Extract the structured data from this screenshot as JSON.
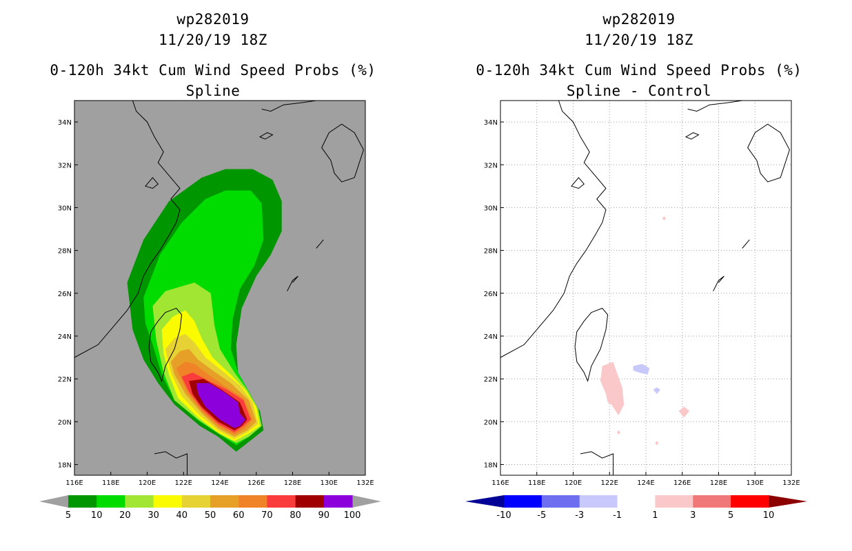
{
  "chart_data": [
    {
      "type": "filled-contour-map",
      "storm_id": "wp282019",
      "datetime": "11/20/19 18Z",
      "title": "0-120h 34kt Cum Wind Speed Probs (%)",
      "subtitle": "Spline",
      "xlabel": "",
      "ylabel": "",
      "xlim": [
        116,
        132
      ],
      "ylim": [
        17.5,
        35
      ],
      "grid": true,
      "x_tick_values": [
        116,
        118,
        120,
        122,
        124,
        126,
        128,
        130,
        132
      ],
      "x_tick_labels": [
        "116E",
        "118E",
        "120E",
        "122E",
        "124E",
        "126E",
        "128E",
        "130E",
        "132E"
      ],
      "y_tick_values": [
        18,
        20,
        22,
        24,
        26,
        28,
        30,
        32,
        34
      ],
      "y_tick_labels": [
        "18N",
        "20N",
        "22N",
        "24N",
        "26N",
        "28N",
        "30N",
        "32N",
        "34N"
      ],
      "colorbar": {
        "labels": [
          "5",
          "10",
          "20",
          "30",
          "40",
          "50",
          "60",
          "70",
          "80",
          "90",
          "100"
        ],
        "colors": [
          "#009600",
          "#00dc00",
          "#a0e632",
          "#fafa00",
          "#e6d232",
          "#e6a028",
          "#f08228",
          "#fa3c3c",
          "#a00000",
          "#8c00dc"
        ],
        "under_color": "#a0a0a0",
        "over_color": "#a0a0a0"
      },
      "contour_levels": [
        {
          "level": 5,
          "points": [
            [
              118.9,
              26.5
            ],
            [
              119.8,
              28.5
            ],
            [
              121.2,
              30.3
            ],
            [
              123.0,
              31.4
            ],
            [
              124.3,
              31.8
            ],
            [
              125.8,
              31.8
            ],
            [
              126.9,
              31.3
            ],
            [
              127.4,
              30.3
            ],
            [
              127.4,
              28.9
            ],
            [
              126.8,
              27.8
            ],
            [
              126.0,
              26.8
            ],
            [
              125.2,
              25.3
            ],
            [
              124.9,
              23.6
            ],
            [
              125.0,
              22.2
            ],
            [
              125.6,
              21.3
            ],
            [
              126.2,
              20.5
            ],
            [
              126.4,
              19.6
            ],
            [
              125.5,
              19.0
            ],
            [
              124.9,
              18.6
            ],
            [
              123.9,
              19.3
            ],
            [
              122.9,
              19.8
            ],
            [
              121.5,
              20.8
            ],
            [
              120.6,
              21.8
            ],
            [
              119.8,
              22.9
            ],
            [
              119.2,
              24.3
            ]
          ]
        },
        {
          "level": 10,
          "points": [
            [
              119.8,
              25.8
            ],
            [
              120.7,
              27.8
            ],
            [
              121.9,
              29.3
            ],
            [
              123.2,
              30.4
            ],
            [
              124.3,
              30.8
            ],
            [
              125.7,
              30.8
            ],
            [
              126.3,
              30.2
            ],
            [
              126.4,
              28.5
            ],
            [
              125.9,
              27.3
            ],
            [
              125.1,
              26.2
            ],
            [
              124.7,
              24.8
            ],
            [
              124.6,
              23.4
            ],
            [
              125.0,
              22.3
            ],
            [
              125.6,
              21.4
            ],
            [
              126.1,
              20.6
            ],
            [
              126.3,
              19.8
            ],
            [
              125.6,
              19.3
            ],
            [
              124.9,
              18.9
            ],
            [
              124.0,
              19.4
            ],
            [
              122.9,
              20.0
            ],
            [
              121.5,
              21.0
            ],
            [
              120.8,
              22.2
            ],
            [
              120.3,
              23.6
            ],
            [
              119.9,
              24.6
            ]
          ]
        },
        {
          "level": 20,
          "points": [
            [
              120.3,
              25.4
            ],
            [
              121.0,
              26.1
            ],
            [
              122.6,
              26.5
            ],
            [
              123.5,
              26.0
            ],
            [
              123.7,
              24.5
            ],
            [
              124.0,
              23.4
            ],
            [
              124.8,
              22.3
            ],
            [
              125.5,
              21.5
            ],
            [
              126.1,
              20.6
            ],
            [
              126.3,
              19.8
            ],
            [
              125.6,
              19.3
            ],
            [
              124.9,
              19.0
            ],
            [
              124.0,
              19.4
            ],
            [
              122.8,
              20.1
            ],
            [
              121.5,
              21.0
            ],
            [
              120.9,
              22.3
            ],
            [
              120.5,
              23.8
            ]
          ]
        },
        {
          "level": 30,
          "points": [
            [
              120.8,
              24.3
            ],
            [
              121.4,
              24.9
            ],
            [
              122.1,
              25.2
            ],
            [
              122.6,
              24.7
            ],
            [
              123.0,
              23.9
            ],
            [
              123.6,
              23.0
            ],
            [
              124.6,
              22.2
            ],
            [
              125.4,
              21.5
            ],
            [
              126.0,
              20.7
            ],
            [
              126.2,
              19.8
            ],
            [
              125.5,
              19.4
            ],
            [
              124.8,
              19.1
            ],
            [
              123.9,
              19.5
            ],
            [
              122.8,
              20.2
            ],
            [
              121.7,
              21.1
            ],
            [
              121.2,
              22.2
            ],
            [
              120.9,
              23.2
            ]
          ]
        },
        {
          "level": 40,
          "points": [
            [
              121.0,
              23.4
            ],
            [
              121.5,
              23.9
            ],
            [
              122.1,
              24.1
            ],
            [
              122.6,
              23.7
            ],
            [
              123.2,
              23.0
            ],
            [
              124.1,
              22.4
            ],
            [
              125.1,
              21.7
            ],
            [
              125.8,
              20.9
            ],
            [
              126.1,
              19.9
            ],
            [
              125.5,
              19.5
            ],
            [
              124.8,
              19.2
            ],
            [
              123.9,
              19.6
            ],
            [
              122.9,
              20.3
            ],
            [
              121.9,
              21.2
            ],
            [
              121.3,
              22.3
            ]
          ]
        },
        {
          "level": 50,
          "points": [
            [
              121.3,
              22.8
            ],
            [
              121.8,
              23.3
            ],
            [
              122.3,
              23.4
            ],
            [
              122.8,
              22.9
            ],
            [
              123.6,
              22.4
            ],
            [
              124.6,
              21.8
            ],
            [
              125.6,
              21.0
            ],
            [
              126.0,
              20.0
            ],
            [
              125.5,
              19.6
            ],
            [
              124.8,
              19.3
            ],
            [
              123.9,
              19.7
            ],
            [
              123.0,
              20.4
            ],
            [
              122.1,
              21.3
            ],
            [
              121.5,
              22.2
            ]
          ]
        },
        {
          "level": 60,
          "points": [
            [
              121.6,
              22.5
            ],
            [
              122.1,
              22.8
            ],
            [
              122.6,
              22.7
            ],
            [
              123.2,
              22.3
            ],
            [
              124.2,
              21.7
            ],
            [
              125.3,
              21.1
            ],
            [
              125.8,
              20.1
            ],
            [
              125.4,
              19.7
            ],
            [
              124.8,
              19.4
            ],
            [
              123.9,
              19.8
            ],
            [
              123.0,
              20.5
            ],
            [
              122.2,
              21.4
            ]
          ]
        },
        {
          "level": 70,
          "points": [
            [
              121.9,
              22.1
            ],
            [
              122.5,
              22.3
            ],
            [
              123.4,
              21.9
            ],
            [
              124.4,
              21.5
            ],
            [
              125.3,
              21.0
            ],
            [
              125.7,
              20.1
            ],
            [
              125.3,
              19.8
            ],
            [
              124.8,
              19.5
            ],
            [
              123.9,
              19.9
            ],
            [
              123.0,
              20.6
            ],
            [
              122.3,
              21.4
            ]
          ]
        },
        {
          "level": 80,
          "points": [
            [
              122.3,
              21.9
            ],
            [
              123.1,
              22.0
            ],
            [
              124.1,
              21.5
            ],
            [
              125.1,
              20.9
            ],
            [
              125.5,
              20.1
            ],
            [
              125.2,
              19.8
            ],
            [
              124.8,
              19.6
            ],
            [
              123.9,
              20.0
            ],
            [
              123.0,
              20.7
            ],
            [
              122.5,
              21.3
            ]
          ]
        },
        {
          "level": 90,
          "points": [
            [
              122.7,
              21.8
            ],
            [
              123.4,
              21.8
            ],
            [
              124.2,
              21.4
            ],
            [
              125.0,
              20.9
            ],
            [
              125.1,
              20.4
            ],
            [
              125.4,
              20.1
            ],
            [
              125.1,
              19.8
            ],
            [
              124.8,
              19.7
            ],
            [
              124.0,
              20.1
            ],
            [
              123.2,
              20.7
            ],
            [
              122.8,
              21.3
            ]
          ]
        }
      ]
    },
    {
      "type": "filled-contour-map",
      "storm_id": "wp282019",
      "datetime": "11/20/19 18Z",
      "title": "0-120h 34kt Cum Wind Speed Probs (%)",
      "subtitle": "Spline - Control",
      "xlabel": "",
      "ylabel": "",
      "xlim": [
        116,
        132
      ],
      "ylim": [
        17.5,
        35
      ],
      "grid": true,
      "x_tick_values": [
        116,
        118,
        120,
        122,
        124,
        126,
        128,
        130,
        132
      ],
      "x_tick_labels": [
        "116E",
        "118E",
        "120E",
        "122E",
        "124E",
        "126E",
        "128E",
        "130E",
        "132E"
      ],
      "y_tick_values": [
        18,
        20,
        22,
        24,
        26,
        28,
        30,
        32,
        34
      ],
      "y_tick_labels": [
        "18N",
        "20N",
        "22N",
        "24N",
        "26N",
        "28N",
        "30N",
        "32N",
        "34N"
      ],
      "colorbar": {
        "labels": [
          "-10",
          "-5",
          "-3",
          "-1",
          "1",
          "3",
          "5",
          "10"
        ],
        "colors": [
          "#0000ff",
          "#6e6ef0",
          "#c8c8fa",
          "#ffffff",
          "#fac8c8",
          "#f07878",
          "#ff0000"
        ],
        "under_color": "#000096",
        "over_color": "#8c0000"
      },
      "anomalies": [
        {
          "value_range": "1 to 3",
          "color": "#fac8c8",
          "points": [
            [
              121.6,
              22.6
            ],
            [
              122.2,
              22.8
            ],
            [
              122.4,
              22.3
            ],
            [
              122.7,
              21.6
            ],
            [
              122.8,
              20.8
            ],
            [
              122.5,
              20.3
            ],
            [
              122.1,
              20.8
            ],
            [
              121.9,
              20.9
            ],
            [
              121.8,
              21.3
            ],
            [
              121.5,
              21.9
            ]
          ]
        },
        {
          "value_range": "-3 to -1",
          "color": "#c8c8fa",
          "points": [
            [
              123.3,
              22.6
            ],
            [
              123.8,
              22.7
            ],
            [
              124.2,
              22.5
            ],
            [
              124.1,
              22.2
            ],
            [
              123.6,
              22.3
            ],
            [
              123.3,
              22.4
            ]
          ]
        },
        {
          "value_range": "-3 to -1",
          "color": "#c8c8fa",
          "points": [
            [
              124.6,
              21.6
            ],
            [
              124.8,
              21.5
            ],
            [
              124.6,
              21.3
            ],
            [
              124.4,
              21.5
            ]
          ]
        },
        {
          "value_range": "1 to 3",
          "color": "#fac8c8",
          "points": [
            [
              126.1,
              20.7
            ],
            [
              126.4,
              20.5
            ],
            [
              126.1,
              20.2
            ],
            [
              125.8,
              20.5
            ]
          ]
        },
        {
          "value_range": "1 to 3",
          "color": "#fac8c8",
          "points": [
            [
              125.0,
              29.6
            ],
            [
              125.1,
              29.5
            ],
            [
              125.0,
              29.4
            ],
            [
              124.9,
              29.5
            ]
          ]
        },
        {
          "value_range": "1 to 3",
          "color": "#fac8c8",
          "points": [
            [
              122.5,
              19.6
            ],
            [
              122.6,
              19.5
            ],
            [
              122.5,
              19.4
            ],
            [
              122.4,
              19.5
            ]
          ]
        },
        {
          "value_range": "1 to 3",
          "color": "#fac8c8",
          "points": [
            [
              124.6,
              19.1
            ],
            [
              124.7,
              19.0
            ],
            [
              124.6,
              18.9
            ],
            [
              124.5,
              19.0
            ]
          ]
        }
      ]
    }
  ]
}
